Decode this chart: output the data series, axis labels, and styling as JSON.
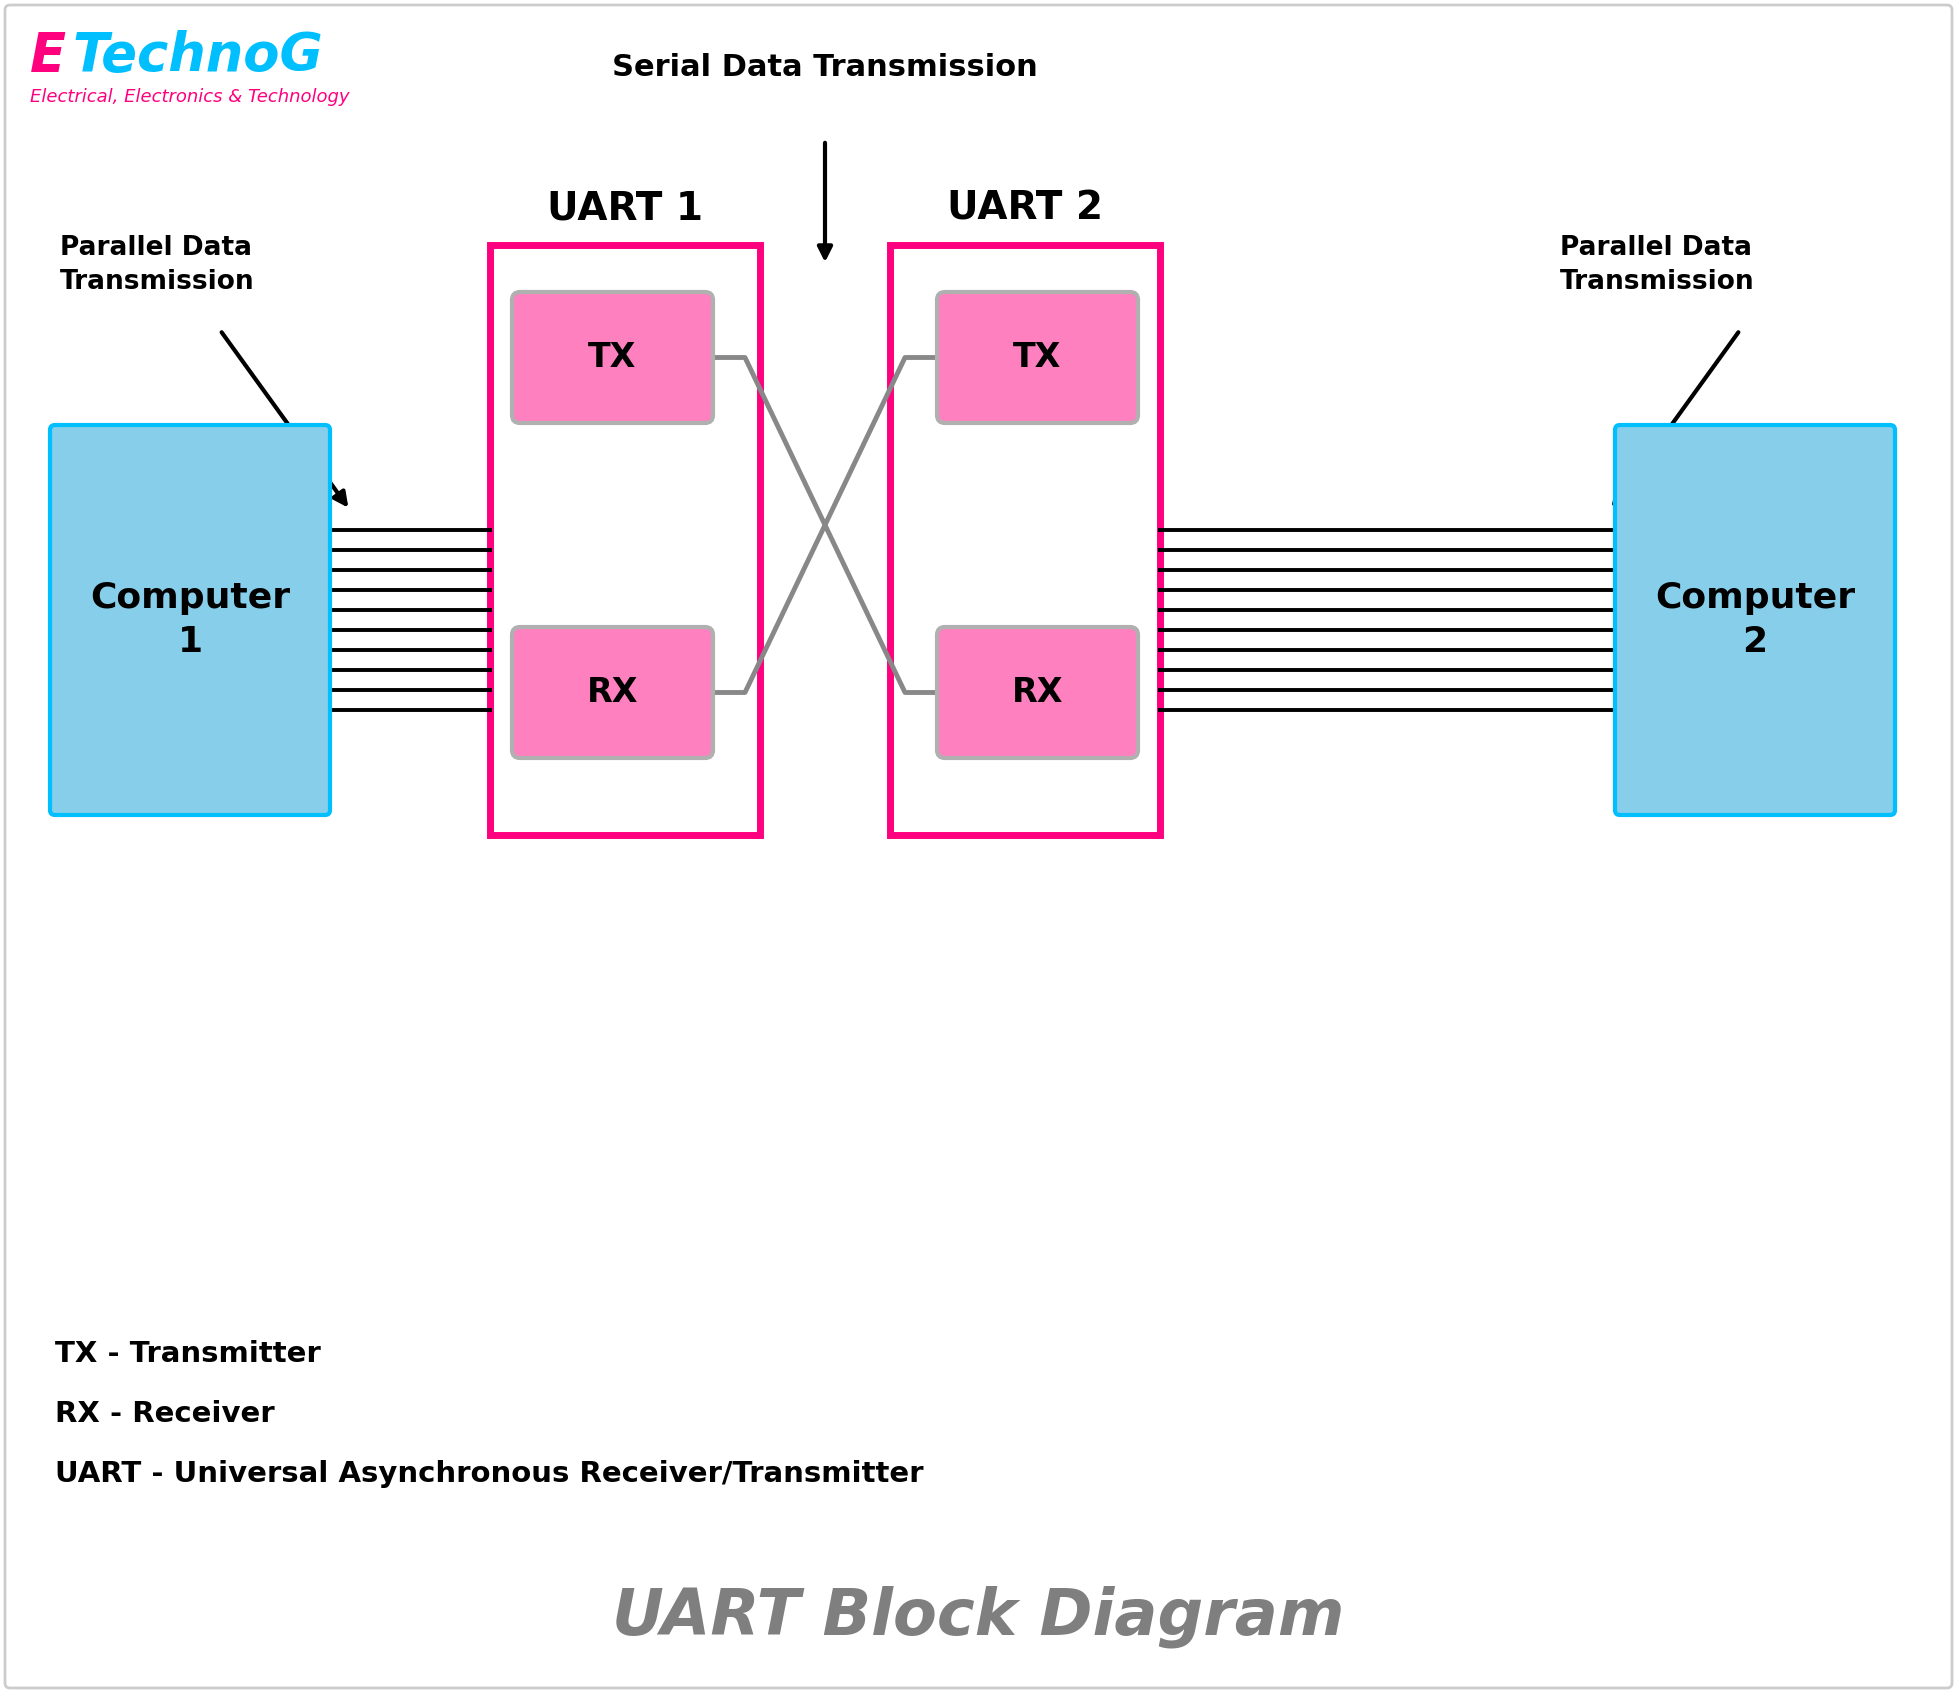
{
  "title": "UART Block Diagram",
  "title_color": "#7f7f7f",
  "bg_color": "#ffffff",
  "border_color": "#cccccc",
  "pink": "#FF007F",
  "tx_rx_pink": "#FF80BF",
  "tx_rx_border": "#b0b0b0",
  "light_blue": "#00BFFF",
  "sky_blue": "#87CEEB",
  "comp_border": "#00BFFF",
  "gray_wire": "#888888",
  "black": "#000000",
  "legend_tx": "TX - Transmitter",
  "legend_rx": "RX - Receiver",
  "legend_uart": "UART - Universal Asynchronous Receiver/Transmitter",
  "serial_label": "Serial Data Transmission",
  "parallel_label_left": "Parallel Data\nTransmission",
  "parallel_label_right": "Parallel Data\nTransmission",
  "uart1_label": "UART 1",
  "uart2_label": "UART 2",
  "computer1_label": "Computer\n1",
  "computer2_label": "Computer\n2",
  "tx_label": "TX",
  "rx_label": "RX",
  "etechnog_e": "E",
  "etechnog_rest": "TechnoG",
  "etechnog_sub": "Electrical, Electronics & Technology"
}
